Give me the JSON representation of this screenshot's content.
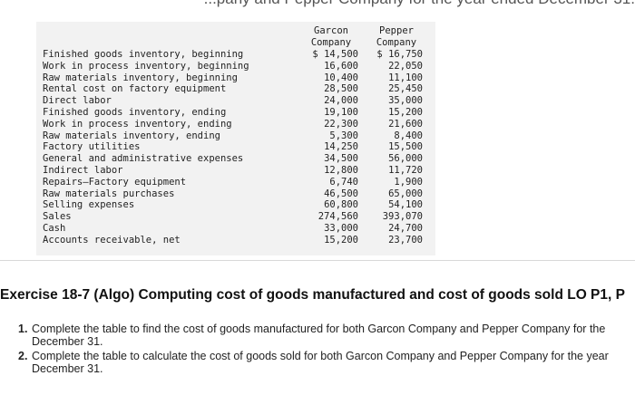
{
  "header": {
    "caption": "...pany and Pepper Company for the year ended December 31."
  },
  "columns": {
    "garcon": [
      "Garcon",
      "Company"
    ],
    "pepper": [
      "Pepper",
      "Company"
    ]
  },
  "rows": [
    {
      "label": "Finished goods inventory, beginning",
      "garcon": "$ 14,500",
      "pepper": "$ 16,750"
    },
    {
      "label": "Work in process inventory, beginning",
      "garcon": "16,600",
      "pepper": "22,050"
    },
    {
      "label": "Raw materials inventory, beginning",
      "garcon": "10,400",
      "pepper": "11,100"
    },
    {
      "label": "Rental cost on factory equipment",
      "garcon": "28,500",
      "pepper": "25,450"
    },
    {
      "label": "Direct labor",
      "garcon": "24,000",
      "pepper": "35,000"
    },
    {
      "label": "Finished goods inventory, ending",
      "garcon": "19,100",
      "pepper": "15,200"
    },
    {
      "label": "Work in process inventory, ending",
      "garcon": "22,300",
      "pepper": "21,600"
    },
    {
      "label": "Raw materials inventory, ending",
      "garcon": "5,300",
      "pepper": "8,400"
    },
    {
      "label": "Factory utilities",
      "garcon": "14,250",
      "pepper": "15,500"
    },
    {
      "label": "General and administrative expenses",
      "garcon": "34,500",
      "pepper": "56,000"
    },
    {
      "label": "Indirect labor",
      "garcon": "12,800",
      "pepper": "11,720"
    },
    {
      "label": "Repairs—Factory equipment",
      "garcon": "6,740",
      "pepper": "1,900"
    },
    {
      "label": "Raw materials purchases",
      "garcon": "46,500",
      "pepper": "65,000"
    },
    {
      "label": "Selling expenses",
      "garcon": "60,800",
      "pepper": "54,100"
    },
    {
      "label": "Sales",
      "garcon": "274,560",
      "pepper": "393,070"
    },
    {
      "label": "Cash",
      "garcon": "33,000",
      "pepper": "24,700"
    },
    {
      "label": "Accounts receivable, net",
      "garcon": "15,200",
      "pepper": "23,700"
    }
  ],
  "exercise": {
    "title": "Exercise 18-7 (Algo) Computing cost of goods manufactured and cost of goods sold LO P1, P"
  },
  "instructions": [
    {
      "num": "1.",
      "line1": "Complete the table to find the cost of goods manufactured for both Garcon Company and Pepper Company for the",
      "line2": "December 31."
    },
    {
      "num": "2.",
      "line1": "Complete the table to calculate the cost of goods sold for both Garcon Company and Pepper Company for the year",
      "line2": "December 31."
    }
  ]
}
